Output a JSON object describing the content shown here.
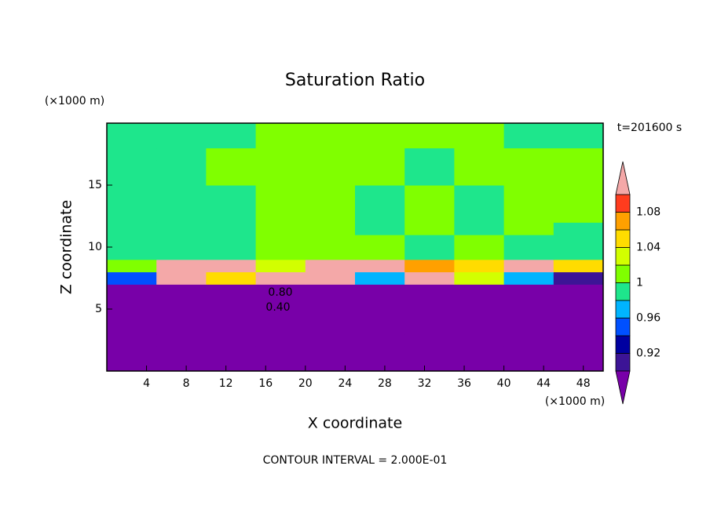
{
  "chart_data": {
    "type": "contour",
    "title": "Saturation Ratio",
    "x_label": "X coordinate",
    "y_label": "Z coordinate",
    "x_unit": "(×1000 m)",
    "y_unit": "(×1000 m)",
    "time_label": "t=201600 s",
    "contour_interval": "CONTOUR INTERVAL = 2.000E-01",
    "contour_labels": [
      "0.80",
      "0.40"
    ],
    "xlim": [
      0,
      50
    ],
    "ylim": [
      0,
      20
    ],
    "xticks": [
      4,
      8,
      12,
      16,
      20,
      24,
      28,
      32,
      36,
      40,
      44,
      48
    ],
    "yticks": [
      5,
      10,
      15
    ],
    "x": [
      2.5,
      7.5,
      12.5,
      17.5,
      22.5,
      27.5,
      32.5,
      37.5,
      42.5,
      47.5
    ],
    "y": [
      0.5,
      1.5,
      2.5,
      3.5,
      4.5,
      5.5,
      6.5,
      7.5,
      8.5,
      9.5,
      10.5,
      11.5,
      12.5,
      13.5,
      14.5,
      15.5,
      16.5,
      17.5,
      18.5,
      19.5
    ],
    "z": [
      [
        0.2,
        0.2,
        0.2,
        0.2,
        0.2,
        0.2,
        0.2,
        0.2,
        0.2,
        0.2
      ],
      [
        0.22,
        0.22,
        0.22,
        0.22,
        0.22,
        0.22,
        0.22,
        0.22,
        0.22,
        0.22
      ],
      [
        0.25,
        0.25,
        0.25,
        0.25,
        0.25,
        0.25,
        0.25,
        0.25,
        0.25,
        0.25
      ],
      [
        0.3,
        0.3,
        0.3,
        0.3,
        0.3,
        0.3,
        0.3,
        0.3,
        0.3,
        0.3
      ],
      [
        0.4,
        0.4,
        0.4,
        0.4,
        0.4,
        0.4,
        0.4,
        0.4,
        0.4,
        0.4
      ],
      [
        0.6,
        0.6,
        0.6,
        0.6,
        0.6,
        0.6,
        0.6,
        0.6,
        0.6,
        0.6
      ],
      [
        0.8,
        0.8,
        0.8,
        0.8,
        0.8,
        0.8,
        0.8,
        0.8,
        0.8,
        0.8
      ],
      [
        0.95,
        1.12,
        1.05,
        1.12,
        1.12,
        0.97,
        1.12,
        1.02,
        0.97,
        0.9
      ],
      [
        1.0,
        1.12,
        1.12,
        1.03,
        1.12,
        1.12,
        1.06,
        1.05,
        1.12,
        1.04
      ],
      [
        0.99,
        0.99,
        0.99,
        1.01,
        1.0,
        1.01,
        0.99,
        1.0,
        0.99,
        0.99
      ],
      [
        0.99,
        0.99,
        0.99,
        1.01,
        1.01,
        1.01,
        0.99,
        1.01,
        0.99,
        0.99
      ],
      [
        0.99,
        0.99,
        0.99,
        1.01,
        1.01,
        0.99,
        1.01,
        0.99,
        1.01,
        0.99
      ],
      [
        0.99,
        0.99,
        0.99,
        1.01,
        1.01,
        0.99,
        1.01,
        0.99,
        1.01,
        1.01
      ],
      [
        0.99,
        0.99,
        0.99,
        1.01,
        1.01,
        0.99,
        1.01,
        0.99,
        1.01,
        1.01
      ],
      [
        0.99,
        0.99,
        0.99,
        1.01,
        1.01,
        0.99,
        1.01,
        0.99,
        1.01,
        1.01
      ],
      [
        0.99,
        0.99,
        1.01,
        1.01,
        1.01,
        1.01,
        0.99,
        1.01,
        1.01,
        1.01
      ],
      [
        0.99,
        0.99,
        1.01,
        1.01,
        1.01,
        1.01,
        0.99,
        1.01,
        1.01,
        1.01
      ],
      [
        0.99,
        0.99,
        1.01,
        1.01,
        1.01,
        1.01,
        0.99,
        1.01,
        1.01,
        1.01
      ],
      [
        0.99,
        0.99,
        0.99,
        1.01,
        1.01,
        1.01,
        1.01,
        1.01,
        0.99,
        0.99
      ],
      [
        0.99,
        0.99,
        0.99,
        1.01,
        1.01,
        1.01,
        1.01,
        1.01,
        0.99,
        0.99
      ]
    ],
    "levels": [
      0.9,
      0.92,
      0.94,
      0.96,
      0.98,
      1.0,
      1.02,
      1.04,
      1.06,
      1.08,
      1.1
    ],
    "colors": [
      "#7800a8",
      "#3c1496",
      "#0000a0",
      "#0050ff",
      "#00b4ff",
      "#1ee68c",
      "#80ff00",
      "#d2ff00",
      "#ffdc00",
      "#ffa000",
      "#ff3c1e",
      "#f4a8a8"
    ],
    "colorbar_ticks": [
      0.92,
      0.96,
      1,
      1.04,
      1.08
    ]
  }
}
